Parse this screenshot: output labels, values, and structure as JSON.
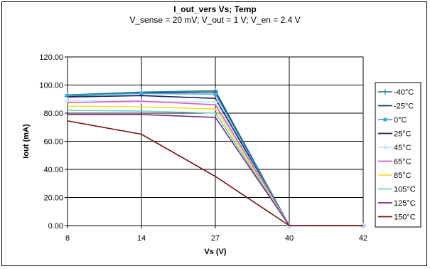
{
  "chart_data": {
    "type": "line",
    "title": "I_out_vers Vs; Temp",
    "subtitle": "V_sense = 20 mV; V_out = 1 V; V_en = 2.4 V",
    "xlabel": "Vs (V)",
    "ylabel": "Iout (mA)",
    "categories": [
      "8",
      "14",
      "27",
      "40",
      "42"
    ],
    "ylim": [
      0,
      120
    ],
    "yticks": [
      "0.00",
      "20.00",
      "40.00",
      "60.00",
      "80.00",
      "100.00",
      "120.00"
    ],
    "grid": true,
    "legend_position": "right",
    "series": [
      {
        "name": "-40°C",
        "color": "#2e8b8b",
        "marker": "plus",
        "values": [
          93.0,
          95.0,
          96.0,
          0,
          0
        ]
      },
      {
        "name": "-25°C",
        "color": "#1f3f7a",
        "marker": "dash",
        "values": [
          92.0,
          94.5,
          95.0,
          0,
          0
        ]
      },
      {
        "name": "0°C",
        "color": "#3fa9e0",
        "marker": "square",
        "values": [
          92.5,
          94.0,
          93.5,
          0,
          0
        ]
      },
      {
        "name": "25°C",
        "color": "#1c1c5e",
        "marker": "none",
        "values": [
          91.5,
          92.5,
          90.5,
          0,
          0
        ]
      },
      {
        "name": "45°C",
        "color": "#c8e6f5",
        "marker": "diamond",
        "values": [
          89.0,
          88.5,
          88.0,
          0,
          0
        ]
      },
      {
        "name": "65°C",
        "color": "#d85cc0",
        "marker": "none",
        "values": [
          87.5,
          88.5,
          86.0,
          0,
          0
        ]
      },
      {
        "name": "85°C",
        "color": "#f0e030",
        "marker": "none",
        "values": [
          85.0,
          84.5,
          83.0,
          0,
          0
        ]
      },
      {
        "name": "105°C",
        "color": "#6fd0d0",
        "marker": "none",
        "values": [
          82.0,
          81.5,
          80.0,
          0,
          0
        ]
      },
      {
        "name": "125°C",
        "color": "#7a2a8a",
        "marker": "none",
        "values": [
          79.0,
          79.0,
          77.0,
          0,
          0
        ]
      },
      {
        "name": "150°C",
        "color": "#7a1010",
        "marker": "none",
        "values": [
          74.5,
          65.0,
          35.0,
          0,
          0
        ]
      }
    ]
  }
}
